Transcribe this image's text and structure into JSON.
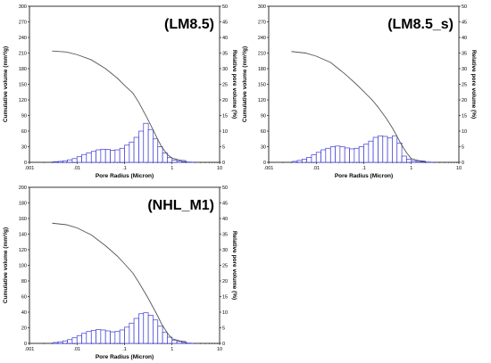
{
  "chart_data": [
    {
      "type": "bar",
      "title": "(LM8.5)",
      "xlabel": "Pore Radius (Micron)",
      "ylabel": "Cumulative volume (mm³/g)",
      "y2label": "Relative pore volume (%)",
      "xscale": "log",
      "xlim": [
        0.001,
        10
      ],
      "xticklabels": [
        ".001",
        ".01",
        ".1",
        "1",
        "10"
      ],
      "ylim": [
        0,
        300
      ],
      "yticks": [
        "0",
        "30",
        "60",
        "90",
        "120",
        "150",
        "180",
        "210",
        "240",
        "270",
        "300"
      ],
      "y2lim": [
        0,
        50
      ],
      "y2ticks": [
        "0",
        "5",
        "10",
        "15",
        "20",
        "25",
        "30",
        "35",
        "40",
        "45",
        "50"
      ],
      "bin_edges": [
        0.00316,
        0.00398,
        0.00501,
        0.00631,
        0.00794,
        0.01,
        0.0126,
        0.0158,
        0.02,
        0.0251,
        0.0316,
        0.0398,
        0.0501,
        0.0631,
        0.0794,
        0.1,
        0.126,
        0.158,
        0.2,
        0.251,
        0.316,
        0.398,
        0.501,
        0.631,
        0.794,
        1,
        1.26,
        1.58,
        2,
        2.51,
        3.16
      ],
      "series": [
        {
          "values": [
            0.2,
            0.3,
            0.5,
            0.8,
            1.2,
            1.8,
            2.5,
            3,
            3.5,
            4,
            4.2,
            4.1,
            3.9,
            4,
            4.5,
            5.5,
            6.5,
            8,
            10,
            12.5,
            10.5,
            7.5,
            5,
            3,
            1.5,
            0.7,
            0.4,
            0.2,
            0.1,
            0.05
          ]
        },
        {
          "x": [
            0.003,
            0.006,
            0.01,
            0.02,
            0.04,
            0.07,
            0.1,
            0.15,
            0.2,
            0.3,
            0.4,
            0.5,
            0.6,
            0.8,
            1,
            1.5,
            2
          ],
          "values": [
            214,
            212,
            207,
            197,
            180,
            162,
            148,
            133,
            115,
            85,
            62,
            44,
            30,
            15,
            8,
            4,
            3
          ]
        }
      ]
    },
    {
      "type": "bar",
      "title": "(LM8.5_s)",
      "xlabel": "Pore Radius (Micron)",
      "ylabel": "Cumulative volume (mm³/g)",
      "y2label": "Relative pore volume (%)",
      "xscale": "log",
      "xlim": [
        0.001,
        10
      ],
      "xticklabels": [
        ".001",
        ".01",
        ".1",
        "1",
        "10"
      ],
      "ylim": [
        0,
        300
      ],
      "yticks": [
        "0",
        "30",
        "60",
        "90",
        "120",
        "150",
        "180",
        "210",
        "240",
        "270",
        "300"
      ],
      "y2lim": [
        0,
        50
      ],
      "y2ticks": [
        "0",
        "5",
        "10",
        "15",
        "20",
        "25",
        "30",
        "35",
        "40",
        "45",
        "50"
      ],
      "bin_edges": [
        0.00316,
        0.00398,
        0.00501,
        0.00631,
        0.00794,
        0.01,
        0.0126,
        0.0158,
        0.02,
        0.0251,
        0.0316,
        0.0398,
        0.0501,
        0.0631,
        0.0794,
        0.1,
        0.126,
        0.158,
        0.2,
        0.251,
        0.316,
        0.398,
        0.501,
        0.631,
        0.794,
        1,
        1.26,
        1.58,
        2,
        2.51,
        3.16
      ],
      "series": [
        {
          "values": [
            0.3,
            0.6,
            1,
            1.6,
            2.4,
            3.2,
            4,
            4.5,
            5,
            5.2,
            5,
            4.6,
            4.3,
            4.5,
            5,
            5.8,
            6.8,
            8,
            8.5,
            8.3,
            7.8,
            8.5,
            6.2,
            2,
            1,
            0.5,
            0.3,
            0.2,
            0.1,
            0.05
          ]
        },
        {
          "x": [
            0.003,
            0.006,
            0.01,
            0.02,
            0.04,
            0.07,
            0.1,
            0.15,
            0.2,
            0.3,
            0.4,
            0.5,
            0.6,
            0.8,
            1,
            1.5,
            2
          ],
          "values": [
            213,
            210,
            204,
            192,
            170,
            150,
            136,
            120,
            106,
            84,
            66,
            50,
            36,
            18,
            7,
            3,
            2
          ]
        }
      ]
    },
    {
      "type": "bar",
      "title": "(NHL_M1)",
      "xlabel": "Pore Radius (Micron)",
      "ylabel": "Cumulative volume (mm³/g)",
      "y2label": "Relative pore volume (%)",
      "xscale": "log",
      "xlim": [
        0.001,
        10
      ],
      "xticklabels": [
        ".001",
        ".01",
        ".1",
        "1",
        "10"
      ],
      "ylim": [
        0,
        200
      ],
      "yticks": [
        "0",
        "20",
        "40",
        "60",
        "80",
        "100",
        "120",
        "140",
        "160",
        "180",
        "200"
      ],
      "y2lim": [
        0,
        50
      ],
      "y2ticks": [
        "0",
        "5",
        "10",
        "15",
        "20",
        "25",
        "30",
        "35",
        "40",
        "45",
        "50"
      ],
      "bin_edges": [
        0.00316,
        0.00398,
        0.00501,
        0.00631,
        0.00794,
        0.01,
        0.0126,
        0.0158,
        0.02,
        0.0251,
        0.0316,
        0.0398,
        0.0501,
        0.0631,
        0.0794,
        0.1,
        0.126,
        0.158,
        0.2,
        0.251,
        0.316,
        0.398,
        0.501,
        0.631,
        0.794,
        1,
        1.26,
        1.58,
        2,
        2.51,
        3.16
      ],
      "series": [
        {
          "values": [
            0.3,
            0.5,
            0.8,
            1.2,
            1.8,
            2.5,
            3.2,
            3.8,
            4.2,
            4.4,
            4.3,
            4,
            3.7,
            3.8,
            4.3,
            5.2,
            6.5,
            8,
            9.5,
            9.8,
            9,
            7.5,
            5.5,
            3.5,
            2,
            1,
            0.6,
            0.3,
            0.1,
            0.05
          ]
        },
        {
          "x": [
            0.003,
            0.006,
            0.01,
            0.02,
            0.04,
            0.07,
            0.1,
            0.15,
            0.2,
            0.3,
            0.4,
            0.5,
            0.6,
            0.8,
            1,
            1.5,
            2
          ],
          "values": [
            154,
            152,
            148,
            139,
            125,
            112,
            102,
            90,
            78,
            60,
            46,
            35,
            25,
            13,
            6,
            3,
            2
          ]
        }
      ]
    }
  ],
  "colors": {
    "bars": "#3a3ad6",
    "curve": "#555555",
    "axis": "#000000"
  }
}
